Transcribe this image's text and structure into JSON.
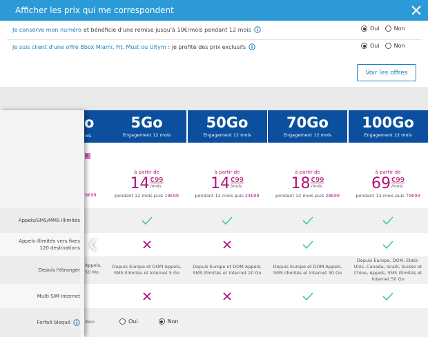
{
  "filter": {
    "title": "Afficher les prix qui me correspondent",
    "options": [
      {
        "link": "Je conserve mon numéro",
        "text": "et bénéficie d'une remise jusqu'à 10€/mois pendant 12 mois",
        "yes": "Oui",
        "no": "Non",
        "selected": "yes"
      },
      {
        "link": "Je suis client d'une offre Bbox Miami, Fit, Must ou Ultym",
        "text": ": je profite des prix exclusifs",
        "yes": "Oui",
        "no": "Non",
        "selected": "yes"
      }
    ],
    "button": "Voir les offres"
  },
  "table": {
    "row_labels": [
      "Appels/SMS/MMS illimités",
      "Appels illimités vers fixes 120 destinations",
      "Depuis l'étranger",
      "Multi-SIM Internet",
      "Forfait bloqué"
    ],
    "hidden_plan": {
      "name": "o",
      "engagement": "ols",
      "badge": "X",
      "price_after": "9€99",
      "roaming": [
        "Appels,",
        "50 Mo"
      ],
      "blocked": "Non"
    },
    "plans": [
      {
        "name": "5Go",
        "engagement": "Engagement 12 mois",
        "prefix": "à partir de",
        "euros": "14",
        "cents": "€99",
        "per": "/mois",
        "then": "pendant 12 mois puis",
        "price_after": "19€99",
        "calls": true,
        "fixed": false,
        "roaming": "Depuis Europe et DOM Appels, SMS illimités et Internet 5 Go",
        "multisim": false,
        "blocked": {
          "yes": "Oui",
          "no": "Non",
          "selected": "no"
        }
      },
      {
        "name": "50Go",
        "engagement": "Engagement 12 mois",
        "prefix": "à partir de",
        "euros": "14",
        "cents": "€99",
        "per": "/mois",
        "then": "pendant 12 mois puis",
        "price_after": "24€99",
        "calls": true,
        "fixed": false,
        "roaming": "Depuis Europe et DOM Appels, SMS illimités et Internet 20 Go",
        "multisim": false,
        "blocked": null
      },
      {
        "name": "70Go",
        "engagement": "Engagement 12 mois",
        "prefix": "à partir de",
        "euros": "18",
        "cents": "€99",
        "per": "/mois",
        "then": "pendant 12 mois puis",
        "price_after": "28€99",
        "calls": true,
        "fixed": true,
        "roaming": "Depuis Europe et DOM Appels, SMS illimités et Internet 30 Go",
        "multisim": true,
        "blocked": null
      },
      {
        "name": "100Go",
        "engagement": "Engagement 12 mois",
        "prefix": "à partir de",
        "euros": "69",
        "cents": "€99",
        "per": "/mois",
        "then": "pendant 12 mois puis",
        "price_after": "79€99",
        "calls": true,
        "fixed": true,
        "roaming": "Depuis Europe, DOM, Etats-Unis, Canada, Israël, Suisse et Chine, Appels, SMS illimités et Internet 50 Go",
        "multisim": true,
        "blocked": null
      }
    ]
  }
}
